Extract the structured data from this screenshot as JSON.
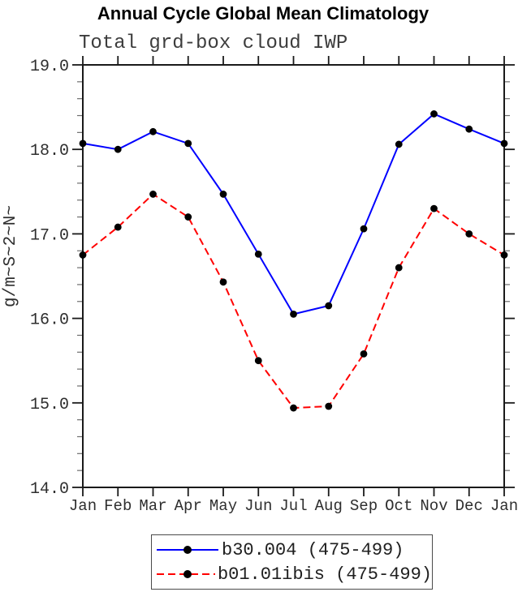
{
  "header": {
    "title": "Annual Cycle Global Mean Climatology",
    "subtitle": "Total grd-box cloud IWP"
  },
  "colors": {
    "series1": "#0000ff",
    "series2": "#ff0000",
    "marker": "#000000",
    "axis": "#1a1a1a",
    "text": "#2e2e2e"
  },
  "chart_data": {
    "type": "line",
    "title": "Annual Cycle Global Mean Climatology",
    "subtitle": "Total grd-box cloud IWP",
    "xlabel": "",
    "ylabel": "g/m~S~2~N~",
    "categories": [
      "Jan",
      "Feb",
      "Mar",
      "Apr",
      "May",
      "Jun",
      "Jul",
      "Aug",
      "Sep",
      "Oct",
      "Nov",
      "Dec",
      "Jan"
    ],
    "series": [
      {
        "name": "b30.004 (475-499)",
        "color": "#0000ff",
        "style": "solid",
        "marker": "circle",
        "values": [
          18.07,
          18.0,
          18.21,
          18.07,
          17.47,
          16.76,
          16.05,
          16.15,
          17.06,
          18.06,
          18.42,
          18.24,
          18.07
        ]
      },
      {
        "name": "b01.01ibis (475-499)",
        "color": "#ff0000",
        "style": "dashed",
        "marker": "circle",
        "values": [
          16.75,
          17.08,
          17.47,
          17.2,
          16.43,
          15.5,
          14.94,
          14.96,
          15.58,
          16.6,
          17.3,
          17.0,
          16.75
        ]
      }
    ],
    "ylim": [
      14.0,
      19.0
    ],
    "y_major_step": 1.0,
    "y_minor_step": 0.2,
    "y_tick_labels": [
      "19.0",
      "18.0",
      "17.0",
      "16.0",
      "15.0",
      "14.0"
    ],
    "marker_color": "#000000",
    "grid": false,
    "legend_position": "bottom"
  }
}
